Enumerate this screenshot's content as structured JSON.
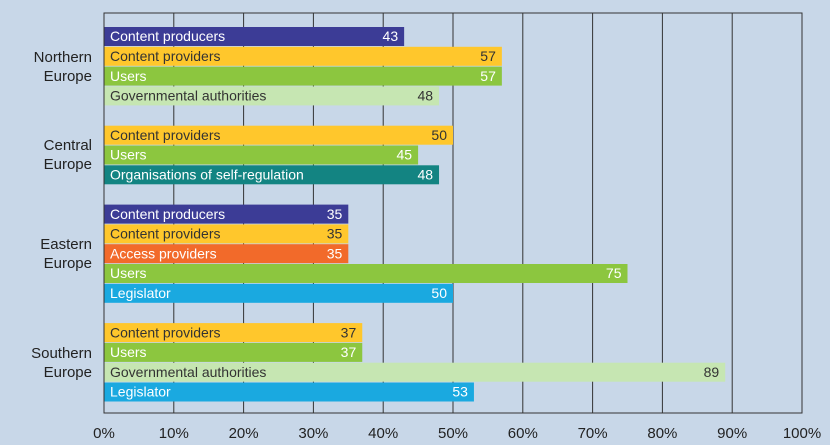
{
  "chart_data": {
    "type": "bar",
    "orientation": "horizontal",
    "groups": [
      {
        "label": "Northern Europe",
        "bars": [
          {
            "name": "Content producers",
            "value": 43,
            "color": "#3c3c96"
          },
          {
            "name": "Content providers",
            "value": 57,
            "color": "#ffc72c"
          },
          {
            "name": "Users",
            "value": 57,
            "color": "#8cc63f"
          },
          {
            "name": "Governmental authorities",
            "value": 48,
            "color": "#c6e6b2"
          }
        ]
      },
      {
        "label": "Central Europe",
        "bars": [
          {
            "name": "Content providers",
            "value": 50,
            "color": "#ffc72c"
          },
          {
            "name": "Users",
            "value": 45,
            "color": "#8cc63f"
          },
          {
            "name": "Organisations of self-regulation",
            "value": 48,
            "color": "#138482"
          }
        ]
      },
      {
        "label": "Eastern Europe",
        "bars": [
          {
            "name": "Content producers",
            "value": 35,
            "color": "#3c3c96"
          },
          {
            "name": "Content providers",
            "value": 35,
            "color": "#ffc72c"
          },
          {
            "name": "Access providers",
            "value": 35,
            "color": "#f26a2a"
          },
          {
            "name": "Users",
            "value": 75,
            "color": "#8cc63f"
          },
          {
            "name": "Legislator",
            "value": 50,
            "color": "#1aa9e0"
          }
        ]
      },
      {
        "label": "Southern Europe",
        "bars": [
          {
            "name": "Content providers",
            "value": 37,
            "color": "#ffc72c"
          },
          {
            "name": "Users",
            "value": 37,
            "color": "#8cc63f"
          },
          {
            "name": "Governmental authorities",
            "value": 89,
            "color": "#c6e6b2"
          },
          {
            "name": "Legislator",
            "value": 53,
            "color": "#1aa9e0"
          }
        ]
      }
    ],
    "xlim": [
      0,
      100
    ],
    "xticks": [
      {
        "value": 0,
        "label": "0%"
      },
      {
        "value": 10,
        "label": "10%"
      },
      {
        "value": 20,
        "label": "20%"
      },
      {
        "value": 30,
        "label": "30%"
      },
      {
        "value": 40,
        "label": "40%"
      },
      {
        "value": 50,
        "label": "50%"
      },
      {
        "value": 60,
        "label": "60%"
      },
      {
        "value": 70,
        "label": "70%"
      },
      {
        "value": 80,
        "label": "80%"
      },
      {
        "value": 90,
        "label": "90%"
      },
      {
        "value": 100,
        "label": "100%"
      }
    ],
    "grid": true
  }
}
